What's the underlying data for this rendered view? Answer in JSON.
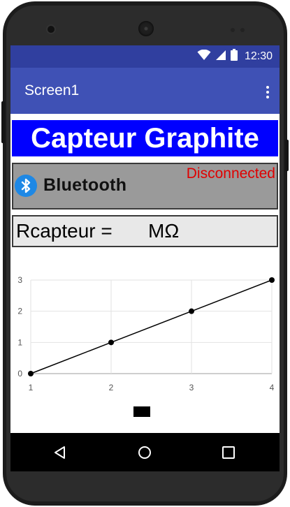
{
  "status_bar": {
    "time": "12:30",
    "icons": [
      "wifi-icon",
      "cell-signal-icon",
      "battery-icon"
    ]
  },
  "app_bar": {
    "title": "Screen1",
    "menu_icon": "overflow-menu-icon"
  },
  "title_banner": {
    "text": "Capteur Graphite",
    "background": "#0000ff",
    "color": "#ffffff"
  },
  "bluetooth_panel": {
    "label": "Bluetooth",
    "icon": "bluetooth-icon",
    "status": "Disconnected",
    "status_color": "#e00000"
  },
  "resistance": {
    "label": "Rcapteur =",
    "value": "",
    "unit": "MΩ"
  },
  "chart_data": {
    "type": "line",
    "x": [
      1,
      2,
      3,
      4
    ],
    "y": [
      0,
      1,
      2,
      3
    ],
    "xlim": [
      1,
      4
    ],
    "ylim": [
      0,
      3
    ],
    "x_ticks": [
      "1",
      "2",
      "3",
      "4"
    ],
    "y_ticks": [
      "0",
      "1",
      "2",
      "3"
    ],
    "grid": true,
    "line_color": "#000000",
    "legend": "bottom-center",
    "series_name": ""
  },
  "nav_bar": {
    "icons": [
      "back-icon",
      "home-icon",
      "recents-icon"
    ]
  },
  "colors": {
    "status_bar": "#303f9f",
    "app_bar": "#3f51b5"
  }
}
